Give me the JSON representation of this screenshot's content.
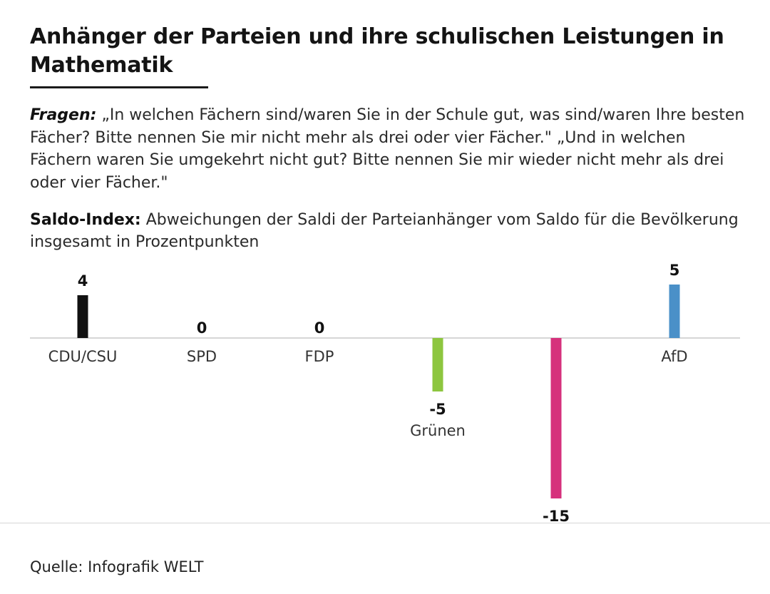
{
  "title": "Anhänger der Parteien und ihre schulischen Leistungen in Mathematik",
  "question": {
    "label": "Fragen:",
    "text": "„In welchen Fächern sind/waren Sie in der Schule gut, was sind/waren Ihre besten Fächer? Bitte nennen Sie mir nicht mehr als drei oder vier Fächer.\" „Und in welchen Fächern waren Sie umgekehrt nicht gut? Bitte nennen Sie mir wieder nicht mehr als drei oder vier Fächer.\""
  },
  "saldo": {
    "label": "Saldo-Index:",
    "text": "Abweichungen der Saldi der Parteianhänger vom Saldo für die Bevölkerung insgesamt in Prozentpunkten"
  },
  "chart_data": {
    "type": "bar",
    "title": "Anhänger der Parteien und ihre schulischen Leistungen in Mathematik",
    "xlabel": "",
    "ylabel": "",
    "categories": [
      "CDU/CSU",
      "SPD",
      "FDP",
      "Grünen",
      "",
      "AfD"
    ],
    "values": [
      4,
      0,
      0,
      -5,
      -15,
      5
    ],
    "value_labels": [
      "4",
      "0",
      "0",
      "-5",
      "-15",
      "5"
    ],
    "colors": [
      "#111111",
      "#111111",
      "#111111",
      "#8dc63f",
      "#d6317c",
      "#4a90c8"
    ],
    "ylim": [
      -15,
      5
    ],
    "grid": false,
    "legend": "none"
  },
  "source": "Quelle: Infografik WELT"
}
